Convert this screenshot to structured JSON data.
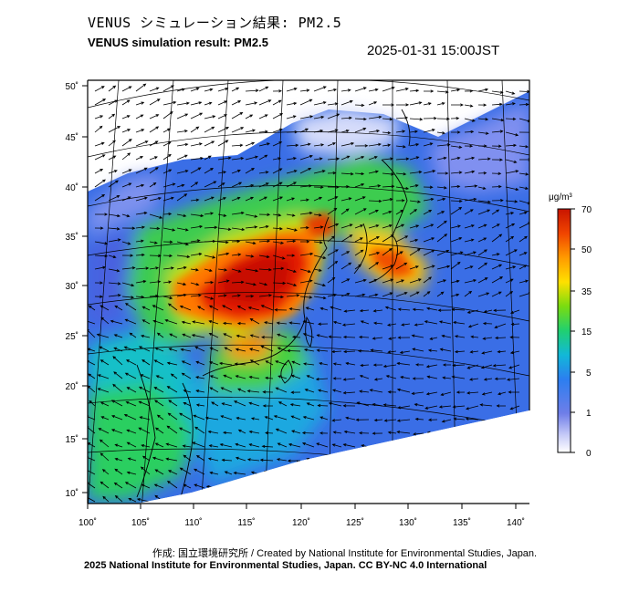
{
  "header": {
    "title_jp": "VENUS シミュレーション結果: PM2.5",
    "title_en": "VENUS simulation result: PM2.5",
    "timestamp": "2025-01-31 15:00JST"
  },
  "map": {
    "lon_ticks": [
      "100˚",
      "105˚",
      "110˚",
      "115˚",
      "120˚",
      "125˚",
      "130˚",
      "135˚",
      "140˚"
    ],
    "lat_ticks": [
      "50˚",
      "45˚",
      "40˚",
      "35˚",
      "30˚",
      "25˚",
      "20˚",
      "15˚",
      "10˚"
    ],
    "lon_range": [
      100,
      140
    ],
    "lat_range": [
      10,
      50
    ],
    "field": "PM2.5 concentration with wind vectors",
    "hotspot_region": "North China Plain / Yangtze basin (red, >70)"
  },
  "colorbar": {
    "unit": "μg/m³",
    "levels": [
      "70",
      "50",
      "35",
      "15",
      "5",
      "1",
      "0"
    ],
    "colors": [
      "#c81e00",
      "#f03c00",
      "#ff8c00",
      "#ffd400",
      "#8ee000",
      "#29d65a",
      "#12c2c2",
      "#2f8cf0",
      "#4a62e0",
      "#8c94f0",
      "#e8ecff"
    ]
  },
  "footer": {
    "credit": "作成: 国立環境研究所 / Created by National Institute for Environmental Studies, Japan.",
    "license": "2025 National Institute for Environmental Studies, Japan. CC BY-NC 4.0 International"
  }
}
